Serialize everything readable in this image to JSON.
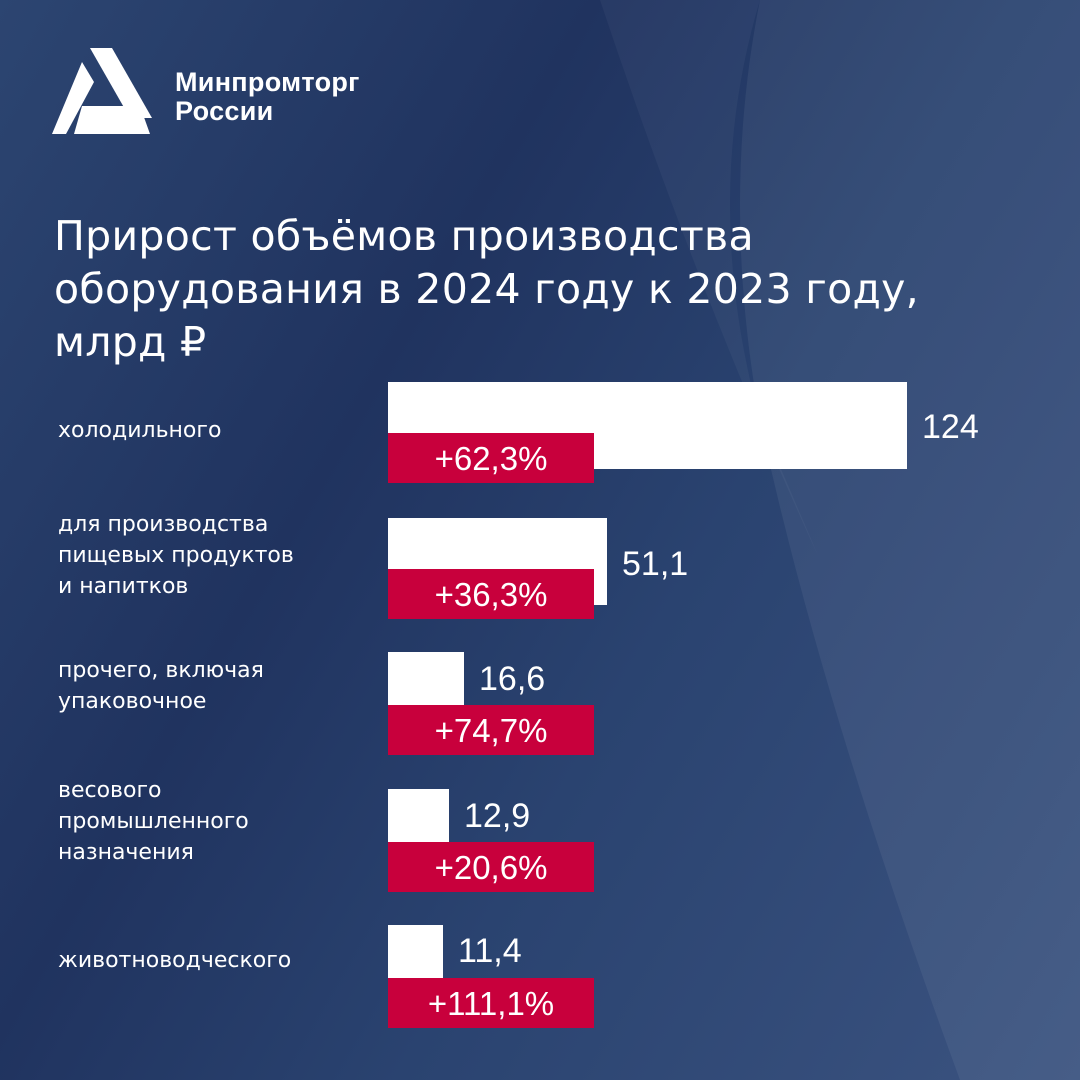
{
  "brand": {
    "line1": "Минпромторг",
    "line2": "России"
  },
  "colors": {
    "bar": "#ffffff",
    "badge": "#c8003c",
    "background": "#22365f"
  },
  "chart_data": {
    "type": "bar",
    "orientation": "horizontal",
    "title_lines": [
      "Прирост объёмов производства",
      "оборудования в 2024 году к 2023 году,",
      "млрд ₽"
    ],
    "unit": "млрд ₽",
    "categories": [
      [
        "холодильного"
      ],
      [
        "для производства",
        "пищевых продуктов",
        "и напитков"
      ],
      [
        "прочего, включая",
        "упаковочное"
      ],
      [
        "весового",
        "промышленного",
        "назначения"
      ],
      [
        "животноводческого"
      ]
    ],
    "values": [
      124,
      51.1,
      16.6,
      12.9,
      11.4
    ],
    "value_labels": [
      "124",
      "51,1",
      "16,6",
      "12,9",
      "11,4"
    ],
    "growth_labels": [
      "+62,3%",
      "+36,3%",
      "+74,7%",
      "+20,6%",
      "+111,1%"
    ],
    "growth_percent": [
      62.3,
      36.3,
      74.7,
      20.6,
      111.1
    ]
  }
}
